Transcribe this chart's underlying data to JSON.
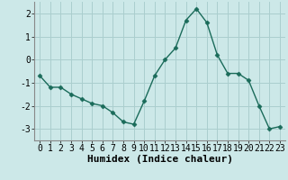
{
  "x": [
    0,
    1,
    2,
    3,
    4,
    5,
    6,
    7,
    8,
    9,
    10,
    11,
    12,
    13,
    14,
    15,
    16,
    17,
    18,
    19,
    20,
    21,
    22,
    23
  ],
  "y": [
    -0.7,
    -1.2,
    -1.2,
    -1.5,
    -1.7,
    -1.9,
    -2.0,
    -2.3,
    -2.7,
    -2.8,
    -1.8,
    -0.7,
    0.0,
    0.5,
    1.7,
    2.2,
    1.6,
    0.2,
    -0.6,
    -0.6,
    -0.9,
    -2.0,
    -3.0,
    -2.9
  ],
  "xlabel": "Humidex (Indice chaleur)",
  "xlim": [
    -0.5,
    23.5
  ],
  "ylim": [
    -3.5,
    2.5
  ],
  "yticks": [
    -3,
    -2,
    -1,
    0,
    1,
    2
  ],
  "xticks": [
    0,
    1,
    2,
    3,
    4,
    5,
    6,
    7,
    8,
    9,
    10,
    11,
    12,
    13,
    14,
    15,
    16,
    17,
    18,
    19,
    20,
    21,
    22,
    23
  ],
  "line_color": "#1a6b5a",
  "marker": "D",
  "marker_size": 2.5,
  "bg_color": "#cce8e8",
  "grid_color": "#aacece",
  "xlabel_fontsize": 8,
  "tick_fontsize": 7
}
